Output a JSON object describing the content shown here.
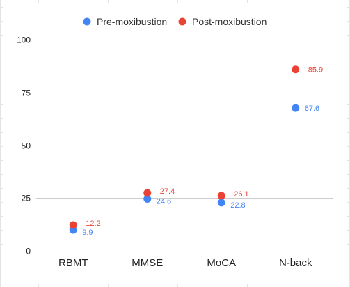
{
  "chart_data": {
    "type": "scatter",
    "categories": [
      "RBMT",
      "MMSE",
      "MoCA",
      "N-back"
    ],
    "series": [
      {
        "name": "Pre-moxibustion",
        "color": "#4285f4",
        "values": [
          9.9,
          24.6,
          22.8,
          67.6
        ]
      },
      {
        "name": "Post-moxibustion",
        "color": "#ea4335",
        "values": [
          12.2,
          27.4,
          26.1,
          85.9
        ]
      }
    ],
    "ylim": [
      0,
      100
    ],
    "yticks": [
      "0",
      "25",
      "50",
      "75",
      "100"
    ],
    "grid": true,
    "legend_position": "top-center",
    "data_labels": true
  }
}
